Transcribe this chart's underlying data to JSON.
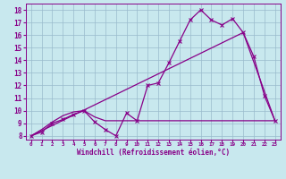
{
  "xlabel": "Windchill (Refroidissement éolien,°C)",
  "bg_color": "#c8e8ee",
  "line_color": "#880088",
  "grid_color": "#99bbcc",
  "x_ticks": [
    0,
    1,
    2,
    3,
    4,
    5,
    6,
    7,
    8,
    9,
    10,
    11,
    12,
    13,
    14,
    15,
    16,
    17,
    18,
    19,
    20,
    21,
    22,
    23
  ],
  "y_ticks": [
    8,
    9,
    10,
    11,
    12,
    13,
    14,
    15,
    16,
    17,
    18
  ],
  "ylim": [
    7.7,
    18.5
  ],
  "xlim": [
    -0.5,
    23.5
  ],
  "curve1_x": [
    0,
    1,
    2,
    3,
    4,
    5,
    6,
    7,
    8,
    9,
    10,
    11,
    12,
    13,
    14,
    15,
    16,
    17,
    18,
    19,
    20,
    21,
    22,
    23
  ],
  "curve1_y": [
    8.0,
    8.3,
    9.0,
    9.3,
    9.7,
    10.0,
    9.1,
    8.5,
    8.0,
    9.8,
    9.2,
    12.0,
    12.2,
    13.8,
    15.5,
    17.2,
    18.0,
    17.2,
    16.8,
    17.3,
    16.2,
    14.3,
    11.2,
    9.2
  ],
  "curve2_x": [
    0,
    1,
    2,
    3,
    4,
    5,
    6,
    7,
    8,
    9,
    10,
    11,
    12,
    13,
    14,
    15,
    16,
    17,
    18,
    19,
    20,
    21,
    22,
    23
  ],
  "curve2_y": [
    8.0,
    8.5,
    9.1,
    9.6,
    9.9,
    10.0,
    9.5,
    9.2,
    9.2,
    9.2,
    9.2,
    9.2,
    9.2,
    9.2,
    9.2,
    9.2,
    9.2,
    9.2,
    9.2,
    9.2,
    9.2,
    9.2,
    9.2,
    9.2
  ],
  "curve3_x": [
    0,
    20,
    23
  ],
  "curve3_y": [
    8.0,
    16.2,
    9.2
  ]
}
